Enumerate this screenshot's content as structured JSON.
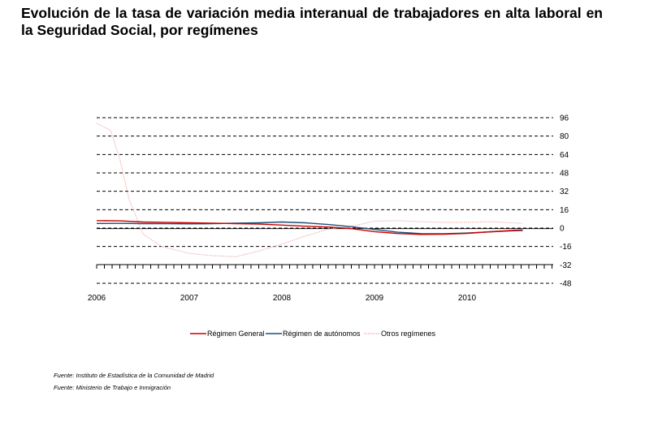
{
  "chart_data": {
    "type": "line",
    "title": "Evolución de la tasa de variación media interanual de trabajadores en alta laboral en la Seguridad Social, por  regímenes",
    "y_ticks": [
      "96",
      "80",
      "64",
      "48",
      "32",
      "16",
      "0",
      "-16",
      "-32",
      "-48"
    ],
    "ylim": [
      -48,
      96
    ],
    "x_ticks": [
      "2006",
      "2007",
      "2008",
      "2009",
      "2010"
    ],
    "xlim": [
      2006.0,
      2011.0
    ],
    "grid": "horizontal dashed",
    "legend_position": "bottom",
    "series": [
      {
        "name": "Régimen General",
        "color": "#cc0000",
        "x": [
          2006.0,
          2006.25,
          2006.5,
          2006.75,
          2007.0,
          2007.25,
          2007.5,
          2007.75,
          2008.0,
          2008.25,
          2008.5,
          2008.75,
          2009.0,
          2009.25,
          2009.5,
          2009.75,
          2010.0,
          2010.25,
          2010.5,
          2010.6
        ],
        "y": [
          6.5,
          6.3,
          5.3,
          5.0,
          4.6,
          4.3,
          3.9,
          3.5,
          2.6,
          1.6,
          0.9,
          -0.5,
          -3.1,
          -4.7,
          -5.5,
          -5.3,
          -4.6,
          -3.2,
          -2.0,
          -1.6
        ]
      },
      {
        "name": "Régimen de autónomos",
        "color": "#1f4e79",
        "x": [
          2006.0,
          2006.25,
          2006.5,
          2006.75,
          2007.0,
          2007.25,
          2007.5,
          2007.75,
          2008.0,
          2008.25,
          2008.5,
          2008.75,
          2009.0,
          2009.25,
          2009.5,
          2009.75,
          2010.0,
          2010.25,
          2010.5,
          2010.6
        ],
        "y": [
          4.0,
          4.1,
          3.9,
          3.8,
          3.7,
          3.8,
          4.2,
          4.6,
          5.3,
          4.6,
          3.1,
          1.2,
          -1.2,
          -3.6,
          -4.8,
          -4.9,
          -4.3,
          -3.3,
          -2.3,
          -2.1
        ]
      },
      {
        "name": "Otros regímenes",
        "color": "#f2bcbc",
        "x": [
          2006.0,
          2006.15,
          2006.25,
          2006.35,
          2006.5,
          2006.7,
          2006.85,
          2007.0,
          2007.25,
          2007.5,
          2007.75,
          2008.0,
          2008.25,
          2008.5,
          2008.75,
          2009.0,
          2009.25,
          2009.5,
          2009.75,
          2010.0,
          2010.25,
          2010.5,
          2010.6
        ],
        "y": [
          91,
          85,
          60,
          25,
          -5,
          -16,
          -19,
          -22,
          -24,
          -25,
          -20,
          -14,
          -7,
          -1,
          1.5,
          6,
          6.5,
          5.5,
          5,
          5,
          5.5,
          4.5,
          4
        ]
      }
    ]
  },
  "sources": [
    "Fuente: Instituto de Estadística de la Comunidad de Madrid",
    "Fuente: Ministerio de Trabajo e Inmigración"
  ]
}
